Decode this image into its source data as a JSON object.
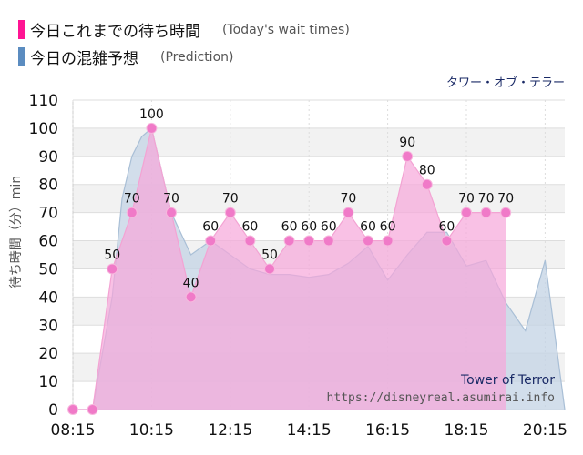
{
  "legend": {
    "actual_label": "今日これまでの待ち時間",
    "actual_note": "(Today's wait times)",
    "prediction_label": "今日の混雑予想",
    "prediction_note": "(Prediction)"
  },
  "attraction_name_ja": "タワー・オブ・テラー",
  "watermark": {
    "name": "Tower of Terror",
    "url": "https://disneyreal.asumirai.info"
  },
  "colors": {
    "actual": "#ff1493",
    "actual_fill": "#f7a6da",
    "actual_marker": "#f07ac8",
    "prediction": "#5b8cc0",
    "prediction_fill": "#c3d3e4",
    "band": "#f2f2f2",
    "grid": "#dddddd"
  },
  "chart_data": {
    "type": "area",
    "xlabel": "",
    "ylabel": "待ち時間（分）min",
    "ylim": [
      0,
      110
    ],
    "yticks": [
      0,
      10,
      20,
      30,
      40,
      50,
      60,
      70,
      80,
      90,
      100,
      110
    ],
    "xlim": [
      "08:15",
      "20:45"
    ],
    "xticks": [
      "08:15",
      "10:15",
      "12:15",
      "14:15",
      "16:15",
      "18:15",
      "20:15"
    ],
    "grid": true,
    "series": [
      {
        "name": "今日これまでの待ち時間",
        "x": [
          "08:15",
          "08:45",
          "09:15",
          "09:45",
          "10:15",
          "10:45",
          "11:15",
          "11:45",
          "12:15",
          "12:45",
          "13:15",
          "13:45",
          "14:15",
          "14:45",
          "15:15",
          "15:45",
          "16:15",
          "16:45",
          "17:15",
          "17:45",
          "18:15",
          "18:45",
          "19:15"
        ],
        "values": [
          0,
          0,
          50,
          70,
          100,
          70,
          40,
          60,
          70,
          60,
          50,
          60,
          60,
          60,
          70,
          60,
          60,
          90,
          80,
          60,
          70,
          70,
          70
        ]
      },
      {
        "name": "今日の混雑予想",
        "x": [
          "08:15",
          "08:45",
          "09:15",
          "09:30",
          "09:45",
          "10:00",
          "10:15",
          "10:45",
          "11:15",
          "11:45",
          "12:15",
          "12:45",
          "13:15",
          "13:45",
          "14:15",
          "14:45",
          "15:15",
          "15:45",
          "16:15",
          "16:45",
          "17:15",
          "17:45",
          "18:15",
          "18:45",
          "19:15",
          "19:45",
          "20:15",
          "20:45"
        ],
        "values": [
          0,
          0,
          40,
          75,
          90,
          97,
          100,
          70,
          55,
          60,
          55,
          50,
          48,
          48,
          47,
          48,
          52,
          58,
          46,
          55,
          63,
          63,
          51,
          53,
          38,
          28,
          53,
          0
        ]
      }
    ]
  }
}
